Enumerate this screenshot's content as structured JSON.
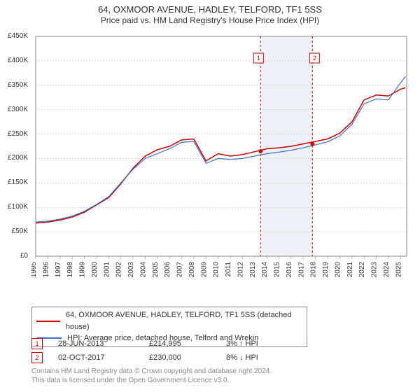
{
  "title": {
    "line1": "64, OXMOOR AVENUE, HADLEY, TELFORD, TF1 5SS",
    "line2": "Price paid vs. HM Land Registry's House Price Index (HPI)",
    "fontsize_line1": 13,
    "fontsize_line2": 12,
    "color": "#333333"
  },
  "chart": {
    "type": "line",
    "plot_background": "#ffffff",
    "band_background": "#eef1f7",
    "grid_color": "#bfbfbf",
    "axis_color": "#888888",
    "tick_label_fontsize": 10,
    "ylim": [
      0,
      450000
    ],
    "ytick_step": 50000,
    "ytick_labels": [
      "£0",
      "£50K",
      "£100K",
      "£150K",
      "£200K",
      "£250K",
      "£300K",
      "£350K",
      "£400K",
      "£450K"
    ],
    "x_years": [
      1995,
      1996,
      1997,
      1998,
      1999,
      2000,
      2001,
      2002,
      2003,
      2004,
      2005,
      2006,
      2007,
      2008,
      2009,
      2010,
      2011,
      2012,
      2013,
      2014,
      2015,
      2016,
      2017,
      2018,
      2019,
      2020,
      2021,
      2022,
      2023,
      2024,
      2025
    ],
    "xlim": [
      1995,
      2025.5
    ],
    "series": [
      {
        "name": "property",
        "label": "64, OXMOOR AVENUE, HADLEY, TELFORD, TF1 5SS (detached house)",
        "color": "#cc0000",
        "line_width": 1.5,
        "x": [
          1995,
          1996,
          1997,
          1998,
          1999,
          2000,
          2001,
          2002,
          2003,
          2004,
          2005,
          2006,
          2007,
          2008,
          2009,
          2010,
          2011,
          2012,
          2013,
          2014,
          2015,
          2016,
          2017,
          2018,
          2019,
          2020,
          2021,
          2022,
          2023,
          2024,
          2025,
          2025.4
        ],
        "y": [
          68000,
          70000,
          74000,
          80000,
          90000,
          105000,
          120000,
          148000,
          180000,
          205000,
          218000,
          225000,
          238000,
          240000,
          195000,
          210000,
          205000,
          208000,
          214000,
          220000,
          222000,
          225000,
          230000,
          235000,
          240000,
          252000,
          275000,
          320000,
          330000,
          328000,
          342000,
          345000
        ]
      },
      {
        "name": "hpi",
        "label": "HPI: Average price, detached house, Telford and Wrekin",
        "color": "#3b6fd1",
        "line_width": 1.2,
        "x": [
          1995,
          1996,
          1997,
          1998,
          1999,
          2000,
          2001,
          2002,
          2003,
          2004,
          2005,
          2006,
          2007,
          2008,
          2009,
          2010,
          2011,
          2012,
          2013,
          2014,
          2015,
          2016,
          2017,
          2018,
          2019,
          2020,
          2021,
          2022,
          2023,
          2024,
          2025,
          2025.4
        ],
        "y": [
          70000,
          72000,
          76000,
          82000,
          92000,
          106000,
          122000,
          150000,
          178000,
          200000,
          210000,
          220000,
          233000,
          235000,
          190000,
          200000,
          198000,
          200000,
          205000,
          210000,
          213000,
          217000,
          222000,
          228000,
          234000,
          246000,
          270000,
          312000,
          322000,
          320000,
          355000,
          368000
        ]
      }
    ],
    "transaction_markers": [
      {
        "n": 1,
        "year": 2013.49,
        "price": 214995,
        "line_color": "#cc0000",
        "box_border": "#cc0000",
        "box_fill": "#ffffff",
        "text_color": "#cc0000"
      },
      {
        "n": 2,
        "year": 2017.75,
        "price": 230000,
        "line_color": "#cc0000",
        "box_border": "#cc0000",
        "box_fill": "#ffffff",
        "text_color": "#cc0000"
      }
    ],
    "shaded_band": {
      "from_year": 2013.49,
      "to_year": 2017.75
    },
    "point_marker": {
      "radius": 3,
      "fill": "#cc0000"
    }
  },
  "legend": {
    "border_color": "#888888",
    "fontsize": 11
  },
  "transactions": [
    {
      "n": "1",
      "date": "28-JUN-2013",
      "price": "£214,995",
      "diff": "3% ↑ HPI",
      "box_border": "#cc0000",
      "text_color": "#cc0000"
    },
    {
      "n": "2",
      "date": "02-OCT-2017",
      "price": "£230,000",
      "diff": "8% ↓ HPI",
      "box_border": "#cc0000",
      "text_color": "#cc0000"
    }
  ],
  "footer": {
    "line1": "Contains HM Land Registry data © Crown copyright and database right 2024.",
    "line2": "This data is licensed under the Open Government Licence v3.0.",
    "color": "#888888",
    "fontsize": 10
  }
}
